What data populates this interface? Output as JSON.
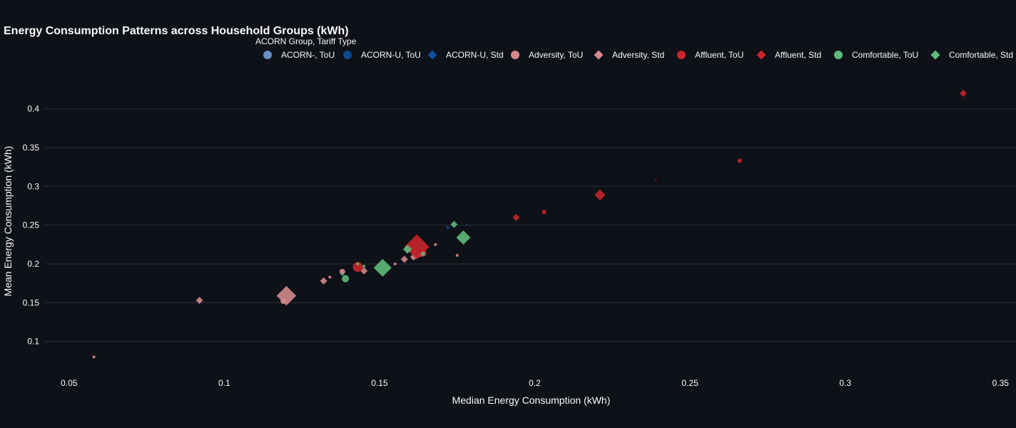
{
  "chart_data": {
    "type": "scatter",
    "title": "Energy Consumption Patterns across Household Groups (kWh)",
    "xlabel": "Median Energy Consumption (kWh)",
    "ylabel": "Mean Energy Consumption (kWh)",
    "xlim": [
      0.042,
      0.355
    ],
    "ylim": [
      0.062,
      0.43
    ],
    "x_ticks": [
      0.05,
      0.1,
      0.15,
      0.2,
      0.25,
      0.3,
      0.35
    ],
    "x_tick_labels": [
      "0.05",
      "0.1",
      "0.15",
      "0.2",
      "0.25",
      "0.3",
      "0.35"
    ],
    "y_ticks": [
      0.1,
      0.15,
      0.2,
      0.25,
      0.3,
      0.35,
      0.4
    ],
    "y_tick_labels": [
      "0.1",
      "0.15",
      "0.2",
      "0.25",
      "0.3",
      "0.35",
      "0.4"
    ],
    "grid": "horizontal",
    "legend": {
      "title": "ACORN Group, Tariff Type",
      "placement": "top"
    },
    "series": [
      {
        "name": "ACORN-, ToU",
        "color": "#6a8fc4",
        "symbol": "circle",
        "points": [
          [
            0.159,
            0.217,
            2
          ]
        ]
      },
      {
        "name": "ACORN-U, ToU",
        "color": "#0f4a8a",
        "symbol": "circle",
        "points": [
          [
            0.178,
            0.251,
            1
          ]
        ]
      },
      {
        "name": "ACORN-U, Std",
        "color": "#1250a0",
        "symbol": "diamond",
        "points": [
          [
            0.172,
            0.247,
            2
          ]
        ]
      },
      {
        "name": "Adversity, ToU",
        "color": "#d48a8c",
        "symbol": "circle",
        "points": [
          [
            0.058,
            0.08,
            2
          ],
          [
            0.119,
            0.152,
            4
          ],
          [
            0.134,
            0.183,
            2
          ],
          [
            0.138,
            0.19,
            4
          ],
          [
            0.155,
            0.2,
            2
          ],
          [
            0.168,
            0.225,
            2
          ],
          [
            0.175,
            0.211,
            2
          ],
          [
            0.163,
            0.212,
            3
          ]
        ]
      },
      {
        "name": "Adversity, Std",
        "color": "#d48a8c",
        "symbol": "diamond",
        "points": [
          [
            0.092,
            0.153,
            4
          ],
          [
            0.12,
            0.159,
            11
          ],
          [
            0.132,
            0.178,
            4
          ],
          [
            0.145,
            0.191,
            4
          ],
          [
            0.158,
            0.206,
            4
          ],
          [
            0.161,
            0.209,
            4
          ]
        ]
      },
      {
        "name": "Affluent, ToU",
        "color": "#c8262a",
        "symbol": "circle",
        "points": [
          [
            0.143,
            0.196,
            7
          ],
          [
            0.203,
            0.267,
            3
          ],
          [
            0.239,
            0.308,
            1
          ],
          [
            0.266,
            0.333,
            3
          ],
          [
            0.164,
            0.214,
            5
          ]
        ]
      },
      {
        "name": "Affluent, Std",
        "color": "#c8262a",
        "symbol": "diamond",
        "points": [
          [
            0.162,
            0.222,
            14
          ],
          [
            0.194,
            0.26,
            4
          ],
          [
            0.221,
            0.289,
            6
          ],
          [
            0.338,
            0.42,
            4
          ]
        ]
      },
      {
        "name": "Comfortable, ToU",
        "color": "#5fba7a",
        "symbol": "circle",
        "points": [
          [
            0.139,
            0.181,
            5
          ],
          [
            0.143,
            0.2,
            2
          ],
          [
            0.138,
            0.187,
            2
          ],
          [
            0.164,
            0.213,
            3
          ],
          [
            0.145,
            0.197,
            2
          ]
        ]
      },
      {
        "name": "Comfortable, Std",
        "color": "#5fba7a",
        "symbol": "diamond",
        "points": [
          [
            0.151,
            0.195,
            10
          ],
          [
            0.159,
            0.219,
            5
          ],
          [
            0.174,
            0.251,
            4
          ],
          [
            0.177,
            0.234,
            8
          ]
        ]
      }
    ]
  }
}
